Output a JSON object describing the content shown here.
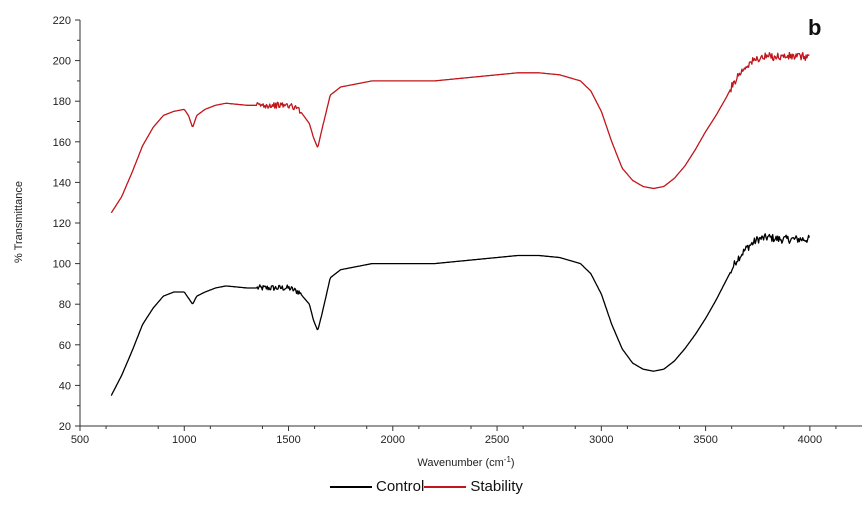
{
  "chart_data": {
    "type": "line",
    "panel_label": "b",
    "xlabel_main": "Wavenumber (cm",
    "xlabel_sup": "-1",
    "xlabel_end": ")",
    "ylabel": "% Transmittance",
    "xlim": [
      500,
      4250
    ],
    "ylim": [
      20,
      220
    ],
    "xticks": [
      500,
      1000,
      1500,
      2000,
      2500,
      3000,
      3500,
      4000
    ],
    "yticks": [
      20,
      40,
      60,
      80,
      100,
      120,
      140,
      160,
      180,
      200,
      220
    ],
    "grid": false,
    "legend_position": "bottom",
    "series": [
      {
        "name": "Control",
        "color": "#000000",
        "x": [
          650,
          700,
          750,
          800,
          850,
          900,
          950,
          1000,
          1020,
          1040,
          1060,
          1100,
          1150,
          1200,
          1300,
          1400,
          1500,
          1550,
          1600,
          1620,
          1640,
          1660,
          1700,
          1750,
          1800,
          1900,
          2000,
          2100,
          2200,
          2300,
          2400,
          2500,
          2600,
          2700,
          2800,
          2900,
          2950,
          3000,
          3050,
          3100,
          3150,
          3200,
          3250,
          3300,
          3350,
          3400,
          3450,
          3500,
          3550,
          3600,
          3650,
          3700,
          3750,
          3800,
          3850,
          3900,
          3950,
          4000
        ],
        "y": [
          35,
          45,
          57,
          70,
          78,
          84,
          86,
          86,
          83,
          80,
          84,
          86,
          88,
          89,
          88,
          88,
          88,
          86,
          80,
          72,
          67,
          75,
          93,
          97,
          98,
          100,
          100,
          100,
          100,
          101,
          102,
          103,
          104,
          104,
          103,
          100,
          95,
          85,
          70,
          58,
          51,
          48,
          47,
          48,
          52,
          58,
          65,
          73,
          82,
          92,
          102,
          108,
          112,
          113,
          112,
          112,
          112,
          112
        ],
        "noise_from": 1350,
        "noise_to": 1560,
        "noise_amp": 3
      },
      {
        "name": "Stability",
        "color": "#c0161c",
        "x": [
          650,
          700,
          750,
          800,
          850,
          900,
          950,
          1000,
          1020,
          1040,
          1060,
          1100,
          1150,
          1200,
          1300,
          1400,
          1500,
          1550,
          1600,
          1620,
          1640,
          1660,
          1700,
          1750,
          1800,
          1900,
          2000,
          2100,
          2200,
          2300,
          2400,
          2500,
          2600,
          2700,
          2800,
          2900,
          2950,
          3000,
          3050,
          3100,
          3150,
          3200,
          3250,
          3300,
          3350,
          3400,
          3450,
          3500,
          3550,
          3600,
          3650,
          3700,
          3750,
          3800,
          3850,
          3900,
          3950,
          4000
        ],
        "y": [
          125,
          133,
          145,
          158,
          167,
          173,
          175,
          176,
          173,
          167,
          173,
          176,
          178,
          179,
          178,
          178,
          178,
          176,
          169,
          162,
          157,
          166,
          183,
          187,
          188,
          190,
          190,
          190,
          190,
          191,
          192,
          193,
          194,
          194,
          193,
          190,
          185,
          175,
          160,
          147,
          141,
          138,
          137,
          138,
          142,
          148,
          156,
          165,
          173,
          182,
          192,
          198,
          201,
          202,
          202,
          202,
          202,
          202
        ],
        "noise_from": 1350,
        "noise_to": 1560,
        "noise_amp": 3
      }
    ]
  }
}
